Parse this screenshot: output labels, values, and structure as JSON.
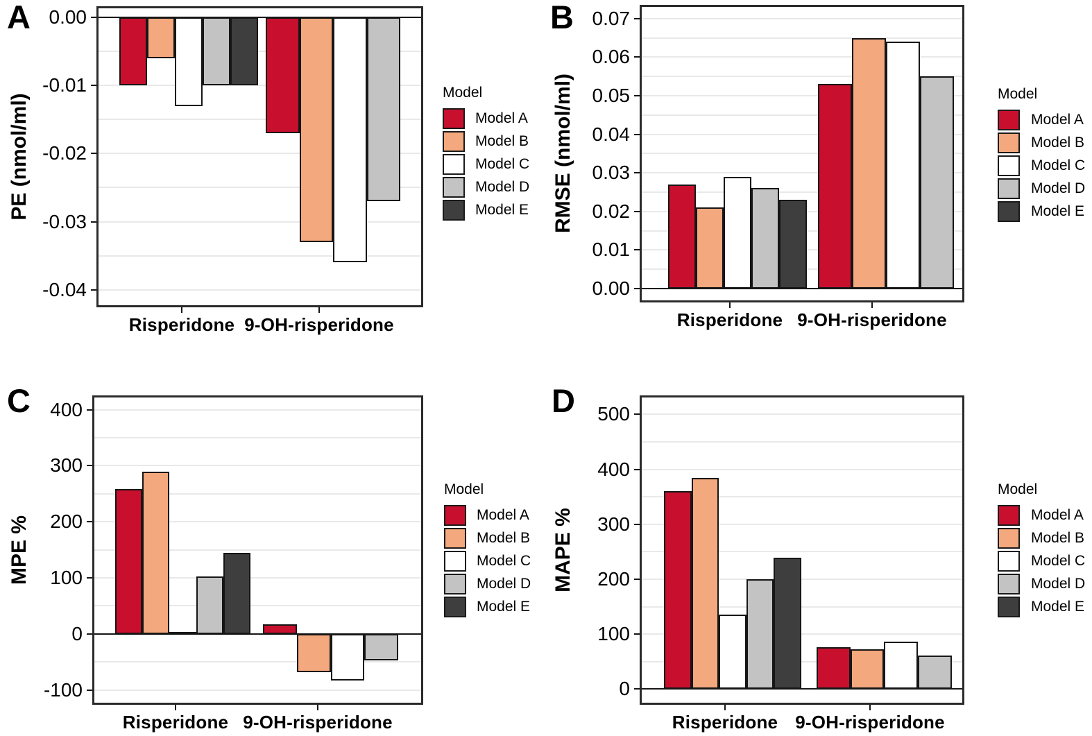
{
  "legend": {
    "title": "Model",
    "items": [
      {
        "label": "Model A",
        "color": "#C8102E"
      },
      {
        "label": "Model B",
        "color": "#F4A87D"
      },
      {
        "label": "Model C",
        "color": "#FFFFFF"
      },
      {
        "label": "Model D",
        "color": "#C3C3C3"
      },
      {
        "label": "Model E",
        "color": "#3E3E3E"
      }
    ]
  },
  "chart_data": [
    {
      "panel": "A",
      "type": "bar",
      "ylabel": "PE (nmol/ml)",
      "categories": [
        "Risperidone",
        "9-OH-risperidone"
      ],
      "ytick_labels": [
        "0.00",
        "-0.01",
        "-0.02",
        "-0.03",
        "-0.04"
      ],
      "yticks": [
        0,
        -0.01,
        -0.02,
        -0.03,
        -0.04
      ],
      "ylim": [
        -0.04,
        0
      ],
      "grid_step": 0.005,
      "legend_position": "right",
      "series": [
        {
          "name": "Model A",
          "values": [
            -0.01,
            -0.017
          ]
        },
        {
          "name": "Model B",
          "values": [
            -0.006,
            -0.033
          ]
        },
        {
          "name": "Model C",
          "values": [
            -0.013,
            -0.036
          ]
        },
        {
          "name": "Model D",
          "values": [
            -0.01,
            -0.027
          ]
        },
        {
          "name": "Model E",
          "values": [
            -0.01,
            null
          ]
        }
      ]
    },
    {
      "panel": "B",
      "type": "bar",
      "ylabel": "RMSE (nmol/ml)",
      "categories": [
        "Risperidone",
        "9-OH-risperidone"
      ],
      "ytick_labels": [
        "0.07",
        "0.06",
        "0.05",
        "0.04",
        "0.03",
        "0.02",
        "0.01",
        "0.00"
      ],
      "yticks": [
        0.07,
        0.06,
        0.05,
        0.04,
        0.03,
        0.02,
        0.01,
        0
      ],
      "ylim": [
        0,
        0.07
      ],
      "grid_step": 0.005,
      "legend_position": "right",
      "series": [
        {
          "name": "Model A",
          "values": [
            0.027,
            0.053
          ]
        },
        {
          "name": "Model B",
          "values": [
            0.021,
            0.065
          ]
        },
        {
          "name": "Model C",
          "values": [
            0.029,
            0.064
          ]
        },
        {
          "name": "Model D",
          "values": [
            0.026,
            0.055
          ]
        },
        {
          "name": "Model E",
          "values": [
            0.023,
            null
          ]
        }
      ]
    },
    {
      "panel": "C",
      "type": "bar",
      "ylabel": "MPE %",
      "categories": [
        "Risperidone",
        "9-OH-risperidone"
      ],
      "ytick_labels": [
        "400",
        "300",
        "200",
        "100",
        "0",
        "-100"
      ],
      "yticks": [
        400,
        300,
        200,
        100,
        0,
        -100
      ],
      "ylim": [
        -100,
        400
      ],
      "grid_step": 50,
      "legend_position": "right",
      "series": [
        {
          "name": "Model A",
          "values": [
            258,
            17
          ]
        },
        {
          "name": "Model B",
          "values": [
            290,
            -68
          ]
        },
        {
          "name": "Model C",
          "values": [
            3,
            -83
          ]
        },
        {
          "name": "Model D",
          "values": [
            102,
            -47
          ]
        },
        {
          "name": "Model E",
          "values": [
            145,
            null
          ]
        }
      ]
    },
    {
      "panel": "D",
      "type": "bar",
      "ylabel": "MAPE %",
      "categories": [
        "Risperidone",
        "9-OH-risperidone"
      ],
      "ytick_labels": [
        "500",
        "400",
        "300",
        "200",
        "100",
        "0"
      ],
      "yticks": [
        500,
        400,
        300,
        200,
        100,
        0
      ],
      "ylim": [
        0,
        500
      ],
      "grid_step": 50,
      "legend_position": "right",
      "series": [
        {
          "name": "Model A",
          "values": [
            360,
            76
          ]
        },
        {
          "name": "Model B",
          "values": [
            384,
            73
          ]
        },
        {
          "name": "Model C",
          "values": [
            136,
            86
          ]
        },
        {
          "name": "Model D",
          "values": [
            200,
            61
          ]
        },
        {
          "name": "Model E",
          "values": [
            239,
            null
          ]
        }
      ]
    }
  ]
}
